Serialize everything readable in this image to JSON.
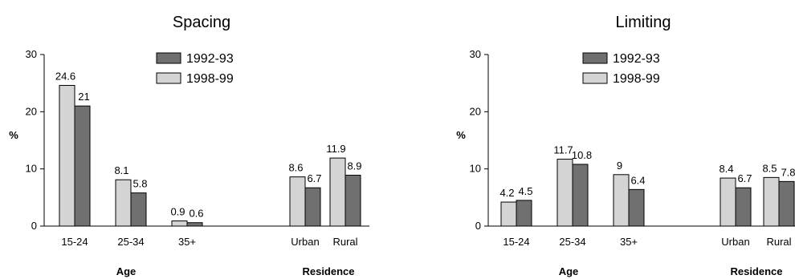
{
  "chart_data": [
    {
      "type": "bar",
      "title": "Spacing",
      "ylabel": "%",
      "ylim": [
        0,
        30
      ],
      "yticks": [
        "0",
        "10",
        "20",
        "30"
      ],
      "categories": [
        "15-24",
        "25-34",
        "35+",
        "Urban",
        "Rural"
      ],
      "groups": [
        {
          "label": "Age"
        },
        {
          "label": "Residence"
        }
      ],
      "series": [
        {
          "name": "1998-99",
          "color": "#d4d4d4",
          "values": [
            24.6,
            8.1,
            0.9,
            8.6,
            11.9
          ],
          "labels": [
            "24.6",
            "8.1",
            "0.9",
            "8.6",
            "11.9"
          ]
        },
        {
          "name": "1992-93",
          "color": "#707070",
          "values": [
            21,
            5.8,
            0.6,
            6.7,
            8.9
          ],
          "labels": [
            "21",
            "5.8",
            "0.6",
            "6.7",
            "8.9"
          ]
        }
      ],
      "legend": [
        "1992-93",
        "1998-99"
      ],
      "legend_position": "top-right"
    },
    {
      "type": "bar",
      "title": "Limiting",
      "ylabel": "%",
      "ylim": [
        0,
        30
      ],
      "yticks": [
        "0",
        "10",
        "20",
        "30"
      ],
      "categories": [
        "15-24",
        "25-34",
        "35+",
        "Urban",
        "Rural"
      ],
      "groups": [
        {
          "label": "Age"
        },
        {
          "label": "Residence"
        }
      ],
      "series": [
        {
          "name": "1998-99",
          "color": "#d4d4d4",
          "values": [
            4.2,
            11.7,
            9,
            8.4,
            8.5
          ],
          "labels": [
            "4.2",
            "11.7",
            "9",
            "8.4",
            "8.5"
          ]
        },
        {
          "name": "1992-93",
          "color": "#707070",
          "values": [
            4.5,
            10.8,
            6.4,
            6.7,
            7.8
          ],
          "labels": [
            "4.5",
            "10.8",
            "6.4",
            "6.7",
            "7.8"
          ]
        }
      ],
      "legend": [
        "1992-93",
        "1998-99"
      ],
      "legend_position": "top-right"
    }
  ]
}
